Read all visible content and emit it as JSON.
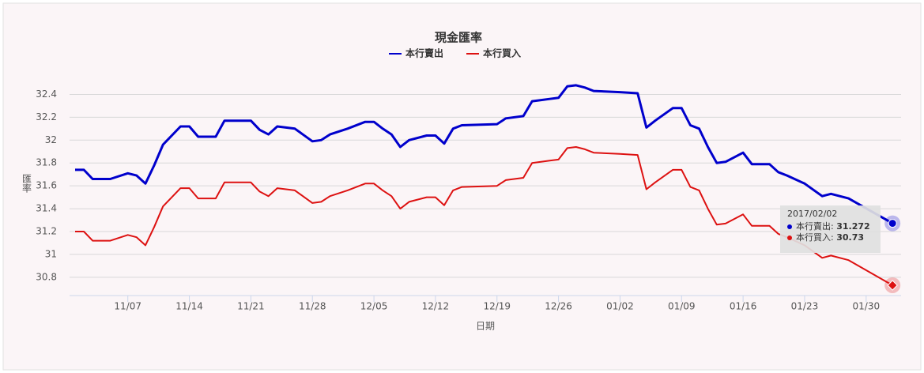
{
  "chart_data": {
    "type": "line",
    "title": "現金匯率",
    "x_label": "日期",
    "y_label": "匯率",
    "x": [
      "11/01",
      "11/02",
      "11/03",
      "11/05",
      "11/07",
      "11/08",
      "11/09",
      "11/10",
      "11/11",
      "11/13",
      "11/14",
      "11/15",
      "11/17",
      "11/18",
      "11/21",
      "11/22",
      "11/23",
      "11/24",
      "11/26",
      "11/28",
      "11/29",
      "11/30",
      "12/02",
      "12/04",
      "12/05",
      "12/06",
      "12/07",
      "12/08",
      "12/09",
      "12/11",
      "12/12",
      "12/13",
      "12/14",
      "12/15",
      "12/19",
      "12/20",
      "12/22",
      "12/23",
      "12/25",
      "12/26",
      "12/27",
      "12/28",
      "12/29",
      "12/30",
      "01/02",
      "01/04",
      "01/05",
      "01/06",
      "01/08",
      "01/09",
      "01/10",
      "01/11",
      "01/12",
      "01/13",
      "01/14",
      "01/16",
      "01/17",
      "01/19",
      "01/20",
      "01/21",
      "01/23",
      "01/25",
      "01/26",
      "01/28",
      "02/02"
    ],
    "series": [
      {
        "name": "本行賣出",
        "color": "#0000cc",
        "values": [
          31.74,
          31.74,
          31.66,
          31.66,
          31.71,
          31.69,
          31.62,
          31.78,
          31.96,
          32.12,
          32.12,
          32.03,
          32.03,
          32.17,
          32.17,
          32.09,
          32.05,
          32.12,
          32.1,
          31.99,
          32.0,
          32.05,
          32.1,
          32.16,
          32.16,
          32.1,
          32.05,
          31.94,
          32.0,
          32.04,
          32.04,
          31.97,
          32.1,
          32.13,
          32.14,
          32.19,
          32.21,
          32.34,
          32.36,
          32.37,
          32.47,
          32.48,
          32.46,
          32.43,
          32.42,
          32.41,
          32.11,
          32.17,
          32.28,
          32.28,
          32.13,
          32.1,
          31.94,
          31.8,
          31.81,
          31.89,
          31.79,
          31.79,
          31.72,
          31.69,
          31.62,
          31.51,
          31.53,
          31.49,
          31.272
        ]
      },
      {
        "name": "本行買入",
        "color": "#dd1111",
        "values": [
          31.2,
          31.2,
          31.12,
          31.12,
          31.17,
          31.15,
          31.08,
          31.24,
          31.42,
          31.58,
          31.58,
          31.49,
          31.49,
          31.63,
          31.63,
          31.55,
          31.51,
          31.58,
          31.56,
          31.45,
          31.46,
          31.51,
          31.56,
          31.62,
          31.62,
          31.56,
          31.51,
          31.4,
          31.46,
          31.5,
          31.5,
          31.43,
          31.56,
          31.59,
          31.6,
          31.65,
          31.67,
          31.8,
          31.82,
          31.83,
          31.93,
          31.94,
          31.92,
          31.89,
          31.88,
          31.87,
          31.57,
          31.63,
          31.74,
          31.74,
          31.59,
          31.56,
          31.4,
          31.26,
          31.27,
          31.35,
          31.25,
          31.25,
          31.18,
          31.15,
          31.08,
          30.97,
          30.99,
          30.95,
          30.73
        ]
      }
    ],
    "ylim": [
      30.64,
      32.5
    ],
    "yticks": [
      30.8,
      31,
      31.2,
      31.4,
      31.6,
      31.8,
      32,
      32.2,
      32.4
    ],
    "xticks": [
      "11/07",
      "11/14",
      "11/21",
      "11/28",
      "12/05",
      "12/12",
      "12/19",
      "12/26",
      "01/02",
      "01/09",
      "01/16",
      "01/23",
      "01/30"
    ],
    "grid": true,
    "tooltip": {
      "date": "2017/02/02"
    }
  }
}
